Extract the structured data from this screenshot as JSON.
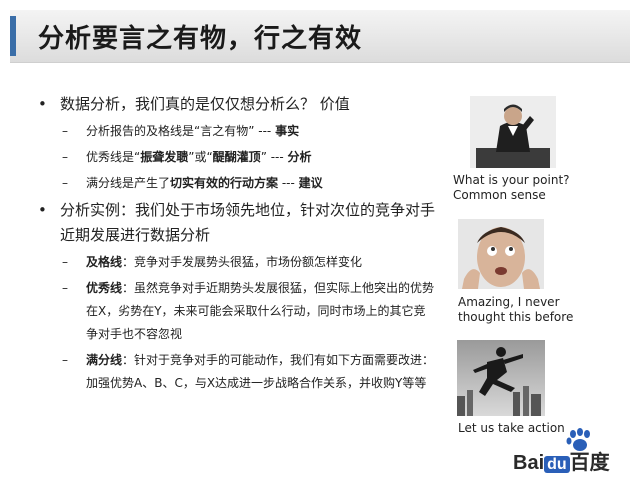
{
  "slide": {
    "title": "分析要言之有物，行之有效"
  },
  "bullets": [
    {
      "level": 1,
      "text": "数据分析，我们真的是仅仅想分析么？  价值"
    },
    {
      "level": 2,
      "parts": [
        {
          "t": "分析报告的及格线是“言之有物”  --- ",
          "b": false
        },
        {
          "t": "事实",
          "b": true
        }
      ]
    },
    {
      "level": 2,
      "parts": [
        {
          "t": "优秀线是“",
          "b": false
        },
        {
          "t": "振聋发聩",
          "b": true
        },
        {
          "t": "”或“",
          "b": false
        },
        {
          "t": "醍醐灌顶",
          "b": true
        },
        {
          "t": "”  --- ",
          "b": false
        },
        {
          "t": "分析",
          "b": true
        }
      ]
    },
    {
      "level": 2,
      "parts": [
        {
          "t": "满分线是产生了",
          "b": false
        },
        {
          "t": "切实有效的行动方案",
          "b": true
        },
        {
          "t": "  --- ",
          "b": false
        },
        {
          "t": "建议",
          "b": true
        }
      ]
    },
    {
      "level": 1,
      "text": "分析实例：我们处于市场领先地位，针对次位的竞争对手近期发展进行数据分析"
    },
    {
      "level": 2,
      "parts": [
        {
          "t": "及格线",
          "b": true
        },
        {
          "t": "：竞争对手发展势头很猛，市场份额怎样变化",
          "b": false
        }
      ]
    },
    {
      "level": 2,
      "parts": [
        {
          "t": "优秀线",
          "b": true
        },
        {
          "t": "：虽然竞争对手近期势头发展很猛，但实际上他突出的优势在X，劣势在Y，未来可能会采取什么行动，同时市场上的其它竞争对手也不容忽视",
          "b": false
        }
      ]
    },
    {
      "level": 2,
      "parts": [
        {
          "t": "满分线",
          "b": true
        },
        {
          "t": "：针对于竞争对手的可能动作，我们有如下方面需要改进：加强优势A、B、C，与X达成进一步战略合作关系，并收购Y等等",
          "b": false
        }
      ]
    }
  ],
  "side_images": [
    {
      "caption_line1": "What is your point?",
      "caption_line2": "Common sense"
    },
    {
      "caption_line1": "Amazing, I never",
      "caption_line2": "thought this before"
    },
    {
      "caption_line1": "Let us take action",
      "caption_line2": ""
    }
  ],
  "watermark": {
    "brand_prefix": "Bai",
    "brand_box": "du",
    "brand_suffix": "百度"
  },
  "colors": {
    "accent": "#3a6ea8",
    "header_bg": "#e4e4e4",
    "logo_blue": "#2a5fb8"
  }
}
